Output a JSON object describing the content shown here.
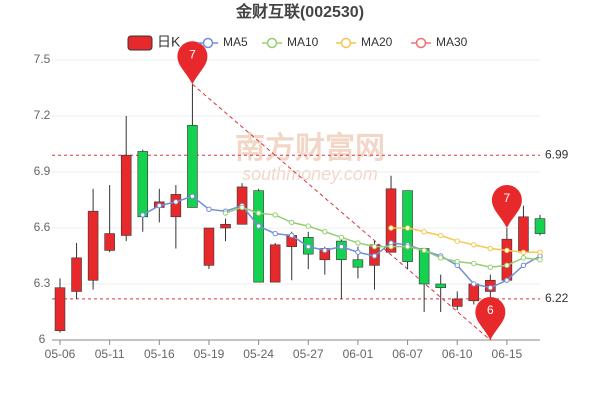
{
  "chart_data": {
    "type": "candlestick",
    "title": "金财互联(002530)",
    "categories": [
      "05-06",
      null,
      null,
      "05-11",
      null,
      null,
      "05-16",
      null,
      null,
      "05-19",
      null,
      null,
      "05-24",
      null,
      null,
      "05-27",
      null,
      null,
      "06-01",
      null,
      null,
      "06-07",
      null,
      null,
      "06-10",
      null,
      null,
      "06-15",
      null,
      null
    ],
    "candles": {
      "name": "日K",
      "up_color": "#e8292b",
      "down_color": "#14d14f",
      "open": [
        6.05,
        6.26,
        6.32,
        6.48,
        6.56,
        7.01,
        6.71,
        6.66,
        7.15,
        6.4,
        6.6,
        6.62,
        6.8,
        6.31,
        6.5,
        6.55,
        6.43,
        6.53,
        6.43,
        6.4,
        6.47,
        6.8,
        6.49,
        6.3,
        6.18,
        6.21,
        6.26,
        6.32,
        6.47,
        6.65
      ],
      "close": [
        6.28,
        6.44,
        6.69,
        6.57,
        6.99,
        6.66,
        6.74,
        6.78,
        6.71,
        6.6,
        6.62,
        6.82,
        6.31,
        6.51,
        6.56,
        6.46,
        6.49,
        6.43,
        6.39,
        6.51,
        6.81,
        6.42,
        6.3,
        6.28,
        6.22,
        6.3,
        6.32,
        6.54,
        6.66,
        6.57
      ],
      "high": [
        6.33,
        6.52,
        6.81,
        6.83,
        7.2,
        7.02,
        6.81,
        6.83,
        7.37,
        6.6,
        6.65,
        6.84,
        6.81,
        6.52,
        6.58,
        6.58,
        6.5,
        6.54,
        6.5,
        6.53,
        6.88,
        6.8,
        6.49,
        6.35,
        6.26,
        6.31,
        6.35,
        6.6,
        6.72,
        6.67
      ],
      "low": [
        6.04,
        6.22,
        6.27,
        6.47,
        6.53,
        6.58,
        6.63,
        6.49,
        6.71,
        6.38,
        6.53,
        6.62,
        6.31,
        6.31,
        6.32,
        6.38,
        6.35,
        6.22,
        6.33,
        6.27,
        6.47,
        6.38,
        6.15,
        6.15,
        6.16,
        6.19,
        6.0,
        6.32,
        6.45,
        6.56
      ]
    },
    "series": [
      {
        "name": "MA5",
        "color": "#6f8fd6",
        "values": [
          null,
          null,
          null,
          null,
          null,
          6.67,
          6.72,
          6.74,
          6.77,
          6.7,
          6.69,
          6.72,
          6.61,
          6.57,
          6.56,
          6.5,
          6.48,
          6.5,
          6.47,
          6.45,
          6.52,
          6.51,
          6.48,
          6.45,
          6.4,
          6.3,
          6.28,
          6.32,
          6.4,
          6.45
        ]
      },
      {
        "name": "MA10",
        "color": "#93cf72",
        "values": [
          null,
          null,
          null,
          null,
          null,
          null,
          null,
          null,
          null,
          null,
          6.68,
          6.71,
          6.68,
          6.67,
          6.63,
          6.61,
          6.58,
          6.55,
          6.52,
          6.5,
          6.5,
          6.5,
          6.48,
          6.44,
          6.42,
          6.41,
          6.39,
          6.4,
          6.44,
          6.43
        ]
      },
      {
        "name": "MA20",
        "color": "#f4c84a",
        "values": [
          null,
          null,
          null,
          null,
          null,
          null,
          null,
          null,
          null,
          null,
          null,
          null,
          null,
          null,
          null,
          null,
          null,
          null,
          null,
          null,
          6.6,
          6.6,
          6.58,
          6.56,
          6.53,
          6.51,
          6.49,
          6.48,
          6.47,
          6.47
        ]
      },
      {
        "name": "MA30",
        "color": "#f07070",
        "values": [
          null,
          null,
          null,
          null,
          null,
          null,
          null,
          null,
          null,
          null,
          null,
          null,
          null,
          null,
          null,
          null,
          null,
          null,
          null,
          null,
          null,
          null,
          null,
          null,
          null,
          null,
          null,
          null,
          null,
          null
        ]
      }
    ],
    "hlines": [
      6.99,
      6.22
    ],
    "markers": [
      {
        "index": 8,
        "value": 7.37,
        "label": "7"
      },
      {
        "index": 26,
        "value": 6.0,
        "label": "6"
      },
      {
        "index": 27,
        "value": 6.6,
        "label": "7"
      }
    ],
    "watermark": "南方财富网",
    "watermark_sub": "southmoney.com",
    "ylim": [
      6,
      7.5
    ],
    "yticks": [
      6,
      6.3,
      6.6,
      6.9,
      7.2,
      7.5
    ],
    "grid": true
  }
}
